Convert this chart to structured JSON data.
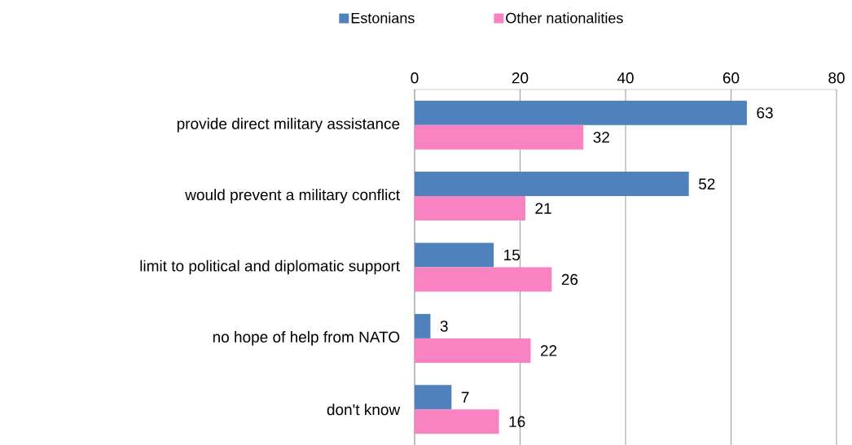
{
  "chart_data": {
    "type": "bar",
    "orientation": "horizontal",
    "categories": [
      "provide direct military assistance",
      "would prevent a military conflict",
      "limit to political and diplomatic support",
      "no hope of help from NATO",
      "don't know"
    ],
    "series": [
      {
        "name": "Estonians",
        "color": "#4f81bd",
        "values": [
          63,
          52,
          15,
          3,
          7
        ]
      },
      {
        "name": "Other nationalities",
        "color": "#f983c2",
        "values": [
          32,
          21,
          26,
          22,
          16
        ]
      }
    ],
    "xlim": [
      0,
      80
    ],
    "xticks": [
      0,
      20,
      40,
      60,
      80
    ],
    "grid": "x",
    "legend": "top",
    "data_labels": true
  }
}
